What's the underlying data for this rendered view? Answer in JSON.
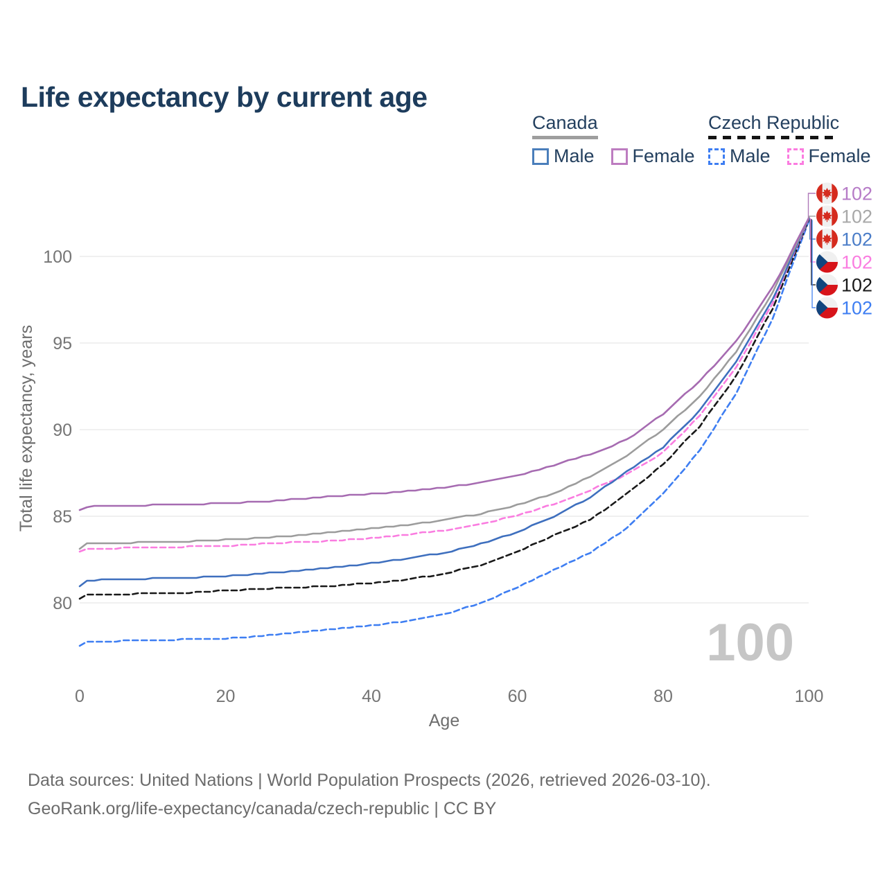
{
  "title": "Life expectancy by current age",
  "watermark": "100",
  "legend": {
    "canada": {
      "label": "Canada",
      "male": "Male",
      "female": "Female"
    },
    "czech": {
      "label": "Czech Republic",
      "male": "Male",
      "female": "Female"
    }
  },
  "footer": {
    "line1": "Data sources: United Nations | World Population Prospects (2026, retrieved 2026-03-10).",
    "line2": "GeoRank.org/life-expectancy/canada/czech-republic | CC BY"
  },
  "colors": {
    "title_text": "#1d3c5c",
    "legend_text": "#24405f",
    "axis_text": "#757575",
    "footer_text": "#6b6b6b",
    "gridline": "#e8e8e8",
    "watermark": "#c6c6c6",
    "canada_underline": "#9e9e9e",
    "czech_underline": "#141414",
    "canada_flag_red": "#d52b1e",
    "czech_flag_red": "#d7141a",
    "czech_flag_blue": "#11457e",
    "flag_white": "#f0f0f0"
  },
  "chart_data": {
    "type": "line",
    "title": "Life expectancy by current age",
    "xlabel": "Age",
    "ylabel": "Total life expectancy, years",
    "xlim": [
      0,
      100
    ],
    "ylim": [
      77,
      103
    ],
    "xticks": [
      0,
      20,
      40,
      60,
      80,
      100
    ],
    "yticks": [
      80,
      85,
      90,
      95,
      100
    ],
    "grid": "horizontal",
    "legend_position": "top-right",
    "x": [
      0,
      1,
      5,
      10,
      15,
      20,
      25,
      30,
      35,
      40,
      45,
      50,
      55,
      60,
      65,
      70,
      75,
      80,
      85,
      90,
      95,
      100
    ],
    "series": [
      {
        "id": "canada-female",
        "name": "Canada Female",
        "country": "Canada",
        "sex": "Female",
        "line_style": "solid",
        "color": "#a66bb1",
        "label_color": "#b67bc7",
        "end_label": "102",
        "flag": "canada",
        "values": [
          85.35,
          85.55,
          85.6,
          85.65,
          85.7,
          85.75,
          85.85,
          86.0,
          86.15,
          86.3,
          86.45,
          86.65,
          86.95,
          87.35,
          87.95,
          88.6,
          89.4,
          90.9,
          92.8,
          95.1,
          98.2,
          102.2
        ]
      },
      {
        "id": "canada-both",
        "name": "Canada Both sexes",
        "country": "Canada",
        "sex": "Both",
        "line_style": "solid",
        "color": "#9c9c9c",
        "label_color": "#a8a8a8",
        "end_label": "102",
        "flag": "canada",
        "values": [
          83.15,
          83.4,
          83.45,
          83.5,
          83.55,
          83.65,
          83.75,
          83.9,
          84.1,
          84.3,
          84.5,
          84.8,
          85.15,
          85.65,
          86.3,
          87.3,
          88.5,
          90.0,
          91.9,
          94.5,
          97.9,
          102.2
        ]
      },
      {
        "id": "canada-male",
        "name": "Canada Male",
        "country": "Canada",
        "sex": "Male",
        "line_style": "solid",
        "color": "#3e6fbe",
        "label_color": "#4b7dc8",
        "end_label": "102",
        "flag": "canada",
        "values": [
          81.0,
          81.3,
          81.35,
          81.4,
          81.45,
          81.55,
          81.7,
          81.85,
          82.05,
          82.3,
          82.55,
          82.9,
          83.4,
          84.1,
          85.0,
          86.1,
          87.6,
          89.0,
          91.1,
          93.9,
          97.5,
          102.2
        ]
      },
      {
        "id": "czech-female",
        "name": "Czech Republic Female",
        "country": "Czech Republic",
        "sex": "Female",
        "line_style": "dashed",
        "color": "#fa7ce0",
        "label_color": "#fa7ce0",
        "end_label": "102",
        "flag": "czech",
        "values": [
          82.95,
          83.1,
          83.15,
          83.2,
          83.25,
          83.3,
          83.4,
          83.5,
          83.6,
          83.75,
          83.95,
          84.2,
          84.55,
          85.05,
          85.7,
          86.5,
          87.4,
          88.7,
          90.8,
          93.6,
          97.3,
          102.2
        ]
      },
      {
        "id": "czech-both",
        "name": "Czech Republic Both sexes",
        "country": "Czech Republic",
        "sex": "Both",
        "line_style": "dashed",
        "color": "#191919",
        "label_color": "#191919",
        "end_label": "102",
        "flag": "czech",
        "values": [
          80.25,
          80.45,
          80.5,
          80.55,
          80.6,
          80.7,
          80.8,
          80.9,
          81.0,
          81.15,
          81.35,
          81.7,
          82.2,
          82.95,
          83.9,
          84.8,
          86.3,
          88.0,
          90.2,
          93.1,
          97.0,
          102.15
        ]
      },
      {
        "id": "czech-male",
        "name": "Czech Republic Male",
        "country": "Czech Republic",
        "sex": "Male",
        "line_style": "dashed",
        "color": "#3e7ef2",
        "label_color": "#3e7ef2",
        "end_label": "102",
        "flag": "czech",
        "values": [
          77.55,
          77.75,
          77.8,
          77.85,
          77.9,
          77.95,
          78.1,
          78.3,
          78.5,
          78.7,
          78.95,
          79.35,
          80.0,
          80.9,
          81.9,
          82.9,
          84.3,
          86.3,
          88.8,
          92.1,
          96.4,
          102.1
        ]
      }
    ]
  }
}
